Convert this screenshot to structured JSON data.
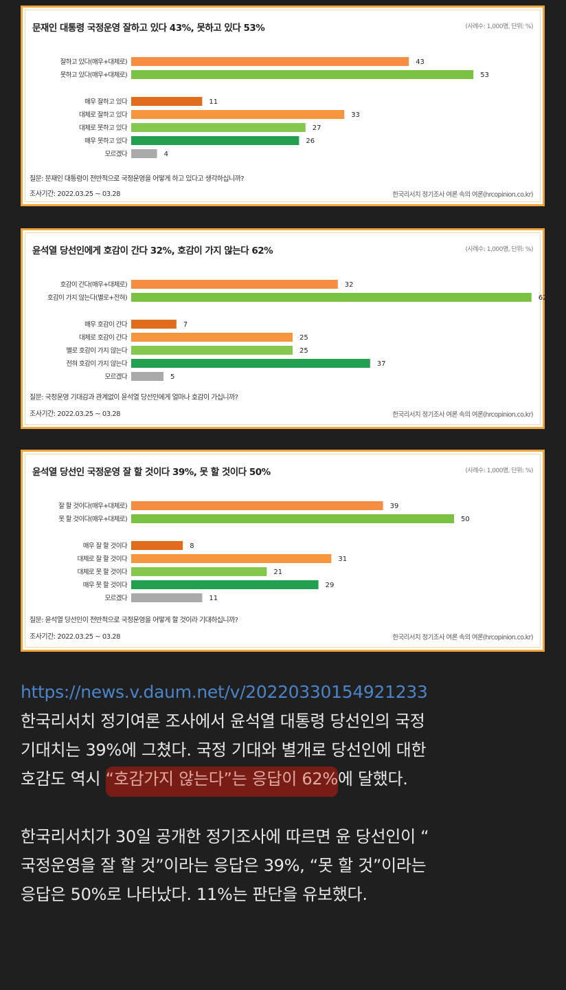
{
  "colors": {
    "orange_agg": "#f58d42",
    "green_agg": "#7cc242",
    "orange_dark": "#e06c1e",
    "orange_mid": "#f5963e",
    "green_light": "#86c84d",
    "green_dark": "#22a050",
    "gray": "#aaaaaa"
  },
  "charts": [
    {
      "title": "문재인 대통령 국정운영 잘하고 있다 43%, 못하고 있다 53%",
      "meta": "(사례수: 1,000명, 단위: %)",
      "question": "질문: 문재인 대통령이 전반적으로 국정운영을 어떻게 하고 있다고 생각하십니까?",
      "period": "조사기간: 2022.03.25 ~ 03.28",
      "source": "한국리서치 정기조사 여론 속의 여론(hrcopinion.co.kr)"
    },
    {
      "title": "윤석열 당선인에게 호감이 간다 32%, 호감이 가지 않는다 62%",
      "meta": "(사례수: 1,000명, 단위: %)",
      "question": "질문: 국정운영 기대감과 관계없이 윤석열 당선인에게 얼마나 호감이 가십니까?",
      "period": "조사기간: 2022.03.25 ~ 03.28",
      "source": "한국리서치 정기조사 여론 속의 여론(hrcopinion.co.kr)"
    },
    {
      "title": "윤석열 당선인 국정운영 잘 할 것이다 39%, 못 할 것이다 50%",
      "meta": "(사례수: 1,000명, 단위: %)",
      "question": "질문: 윤석열 당선인이 전반적으로 국정운영을 어떻게 할 것이라 기대하십니까?",
      "period": "조사기간: 2022.03.25 ~ 03.28",
      "source": "한국리서치 정기조사 여론 속의 여론(hrcopinion.co.kr)"
    }
  ],
  "chart_data": [
    {
      "type": "bar",
      "title": "문재인 대통령 국정운영 잘하고 있다 43%, 못하고 있다 53%",
      "categories": [
        "잘하고 있다(매우+대체로)",
        "못하고 있다(매우+대체로)",
        "매우 잘하고 있다",
        "대체로 잘하고 있다",
        "대체로 못하고 있다",
        "매우 못하고 있다",
        "모르겠다"
      ],
      "values": [
        43,
        53,
        11,
        33,
        27,
        26,
        4
      ],
      "colors": [
        "#f58d42",
        "#7cc242",
        "#e06c1e",
        "#f5963e",
        "#86c84d",
        "#22a050",
        "#aaaaaa"
      ],
      "xlim": [
        0,
        100
      ]
    },
    {
      "type": "bar",
      "title": "윤석열 당선인에게 호감이 간다 32%, 호감이 가지 않는다 62%",
      "categories": [
        "호감이 간다(매우+대체로)",
        "호감이 가지 않는다(별로+전혀)",
        "매우 호감이 간다",
        "대체로 호감이 간다",
        "별로 호감이 가지 않는다",
        "전혀 호감이 가지 않는다",
        "모르겠다"
      ],
      "values": [
        32,
        62,
        7,
        25,
        25,
        37,
        5
      ],
      "colors": [
        "#f58d42",
        "#7cc242",
        "#e06c1e",
        "#f5963e",
        "#86c84d",
        "#22a050",
        "#aaaaaa"
      ],
      "xlim": [
        0,
        100
      ]
    },
    {
      "type": "bar",
      "title": "윤석열 당선인 국정운영 잘 할 것이다 39%, 못 할 것이다 50%",
      "categories": [
        "잘 할 것이다(매우+대체로)",
        "못 할 것이다(매우+대체로)",
        "매우 잘 할 것이다",
        "대체로 잘 할 것이다",
        "대체로 못 할 것이다",
        "매우 못 할 것이다",
        "모르겠다"
      ],
      "values": [
        39,
        50,
        8,
        31,
        21,
        29,
        11
      ],
      "colors": [
        "#f58d42",
        "#7cc242",
        "#e06c1e",
        "#f5963e",
        "#86c84d",
        "#22a050",
        "#aaaaaa"
      ],
      "xlim": [
        0,
        100
      ]
    }
  ],
  "article": {
    "link": "https://news.v.daum.net/v/20220330154921233",
    "p1_line1": "한국리서치 정기여론 조사에서 윤석열 대통령 당선인의 국정",
    "p1_line2": "기대치는 39%에 그쳤다. 국정 기대와 별개로 당선인에 대한",
    "p1_line3_pre": "호감도 역시 ",
    "p1_line3_hl": "“호감가지 않는다”는 응답이 62%",
    "p1_line3_post": "에 달했다.",
    "p2_line1": "한국리서치가 30일 공개한 정기조사에 따르면 윤 당선인이 “",
    "p2_line2": "국정운영을 잘 할 것”이라는 응답은 39%, “못 할 것”이라는",
    "p2_line3": "응답은 50%로 나타났다. 11%는 판단을 유보했다."
  }
}
